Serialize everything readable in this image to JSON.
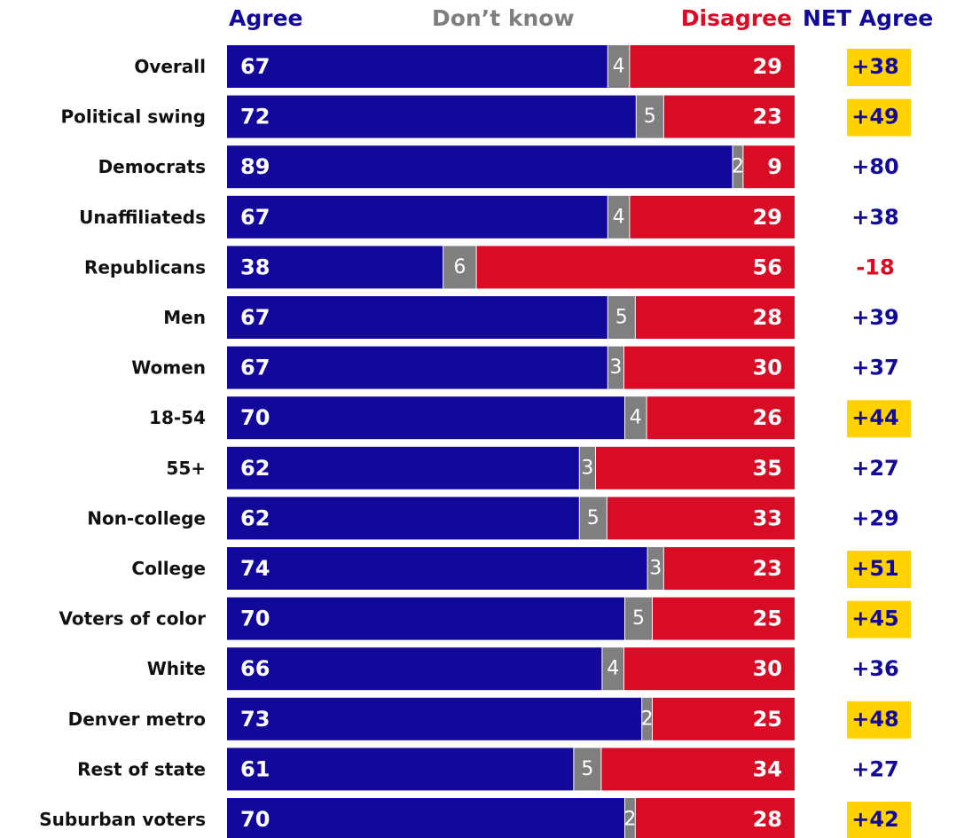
{
  "colors": {
    "agree": "#12099a",
    "dont_know": "#7f7f7f",
    "disagree": "#d80d25",
    "net_positive": "#12099a",
    "net_negative": "#d80d25",
    "highlight": "#ffd200",
    "label": "#111111"
  },
  "chart_data": {
    "type": "bar",
    "stacked": true,
    "orientation": "horizontal",
    "xlim": [
      0,
      100
    ],
    "grid": false,
    "legend": "top (column headers)",
    "headers": {
      "agree": "Agree",
      "dont_know": "Don’t know",
      "disagree": "Disagree",
      "net": "NET Agree"
    },
    "categories": [
      "Overall",
      "Political swing",
      "Democrats",
      "Unaffiliateds",
      "Republicans",
      "Men",
      "Women",
      "18-54",
      "55+",
      "Non-college",
      "College",
      "Voters of color",
      "White",
      "Denver metro",
      "Rest of state",
      "Suburban voters"
    ],
    "series": [
      {
        "name": "Agree",
        "values": [
          67,
          72,
          89,
          67,
          38,
          67,
          67,
          70,
          62,
          62,
          74,
          70,
          66,
          73,
          61,
          70
        ]
      },
      {
        "name": "Don’t know",
        "values": [
          4,
          5,
          2,
          4,
          6,
          5,
          3,
          4,
          3,
          5,
          3,
          5,
          4,
          2,
          5,
          2
        ]
      },
      {
        "name": "Disagree",
        "values": [
          29,
          23,
          9,
          29,
          56,
          28,
          30,
          26,
          35,
          33,
          23,
          25,
          30,
          25,
          34,
          28
        ]
      }
    ],
    "net_agree": [
      "+38",
      "+49",
      "+80",
      "+38",
      "-18",
      "+39",
      "+37",
      "+44",
      "+27",
      "+29",
      "+51",
      "+45",
      "+36",
      "+48",
      "+27",
      "+42"
    ],
    "net_highlighted": [
      true,
      true,
      false,
      false,
      false,
      false,
      false,
      true,
      false,
      false,
      true,
      true,
      false,
      true,
      false,
      true
    ]
  }
}
